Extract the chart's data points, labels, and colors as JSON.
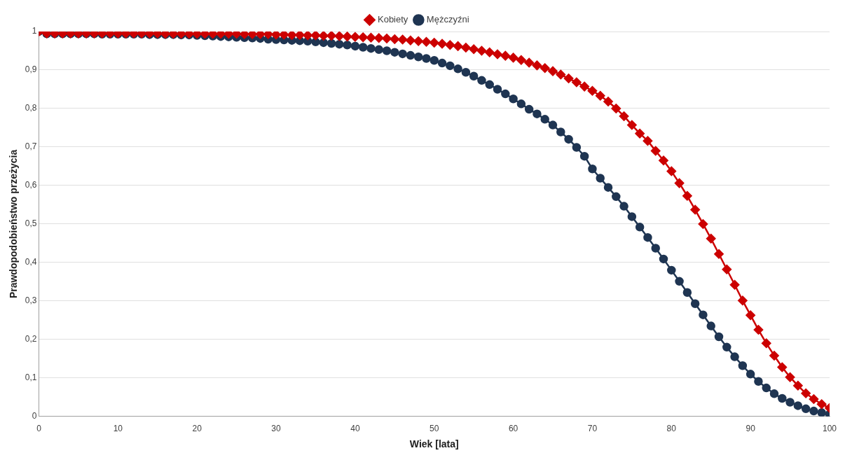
{
  "chart_data": {
    "type": "line",
    "xlabel": "Wiek [lata]",
    "ylabel": "Prawdopodobieństwo przeżycia",
    "x": [
      0,
      1,
      2,
      3,
      4,
      5,
      6,
      7,
      8,
      9,
      10,
      11,
      12,
      13,
      14,
      15,
      16,
      17,
      18,
      19,
      20,
      21,
      22,
      23,
      24,
      25,
      26,
      27,
      28,
      29,
      30,
      31,
      32,
      33,
      34,
      35,
      36,
      37,
      38,
      39,
      40,
      41,
      42,
      43,
      44,
      45,
      46,
      47,
      48,
      49,
      50,
      51,
      52,
      53,
      54,
      55,
      56,
      57,
      58,
      59,
      60,
      61,
      62,
      63,
      64,
      65,
      66,
      67,
      68,
      69,
      70,
      71,
      72,
      73,
      74,
      75,
      76,
      77,
      78,
      79,
      80,
      81,
      82,
      83,
      84,
      85,
      86,
      87,
      88,
      89,
      90,
      91,
      92,
      93,
      94,
      95,
      96,
      97,
      98,
      99,
      100
    ],
    "series": [
      {
        "name": "Kobiety",
        "color": "#cc0000",
        "marker": "diamond",
        "values": [
          1,
          0.995,
          0.995,
          0.995,
          0.995,
          0.995,
          0.995,
          0.995,
          0.995,
          0.995,
          0.995,
          0.995,
          0.995,
          0.995,
          0.995,
          0.995,
          0.994,
          0.994,
          0.994,
          0.994,
          0.994,
          0.994,
          0.994,
          0.994,
          0.994,
          0.994,
          0.993,
          0.993,
          0.993,
          0.993,
          0.992,
          0.992,
          0.991,
          0.991,
          0.99,
          0.99,
          0.989,
          0.989,
          0.988,
          0.987,
          0.986,
          0.985,
          0.984,
          0.983,
          0.982,
          0.98,
          0.979,
          0.977,
          0.975,
          0.973,
          0.971,
          0.968,
          0.965,
          0.962,
          0.958,
          0.954,
          0.95,
          0.946,
          0.941,
          0.937,
          0.932,
          0.926,
          0.919,
          0.912,
          0.905,
          0.897,
          0.888,
          0.878,
          0.868,
          0.857,
          0.846,
          0.833,
          0.818,
          0.8,
          0.78,
          0.757,
          0.735,
          0.716,
          0.69,
          0.665,
          0.637,
          0.606,
          0.573,
          0.537,
          0.5,
          0.462,
          0.422,
          0.382,
          0.342,
          0.301,
          0.263,
          0.225,
          0.19,
          0.158,
          0.128,
          0.102,
          0.08,
          0.06,
          0.045,
          0.032,
          0.022
        ]
      },
      {
        "name": "Mężczyźni",
        "color": "#1f3552",
        "marker": "circle",
        "values": [
          1,
          0.994,
          0.994,
          0.994,
          0.994,
          0.994,
          0.994,
          0.994,
          0.993,
          0.993,
          0.993,
          0.993,
          0.993,
          0.993,
          0.992,
          0.992,
          0.992,
          0.992,
          0.991,
          0.991,
          0.99,
          0.989,
          0.988,
          0.987,
          0.986,
          0.985,
          0.984,
          0.983,
          0.982,
          0.98,
          0.979,
          0.978,
          0.977,
          0.976,
          0.975,
          0.973,
          0.971,
          0.969,
          0.967,
          0.965,
          0.962,
          0.959,
          0.956,
          0.953,
          0.95,
          0.946,
          0.942,
          0.938,
          0.934,
          0.93,
          0.925,
          0.918,
          0.911,
          0.903,
          0.894,
          0.884,
          0.873,
          0.862,
          0.85,
          0.838,
          0.825,
          0.812,
          0.798,
          0.786,
          0.772,
          0.757,
          0.739,
          0.72,
          0.699,
          0.676,
          0.643,
          0.619,
          0.595,
          0.571,
          0.546,
          0.519,
          0.492,
          0.465,
          0.437,
          0.409,
          0.38,
          0.351,
          0.322,
          0.293,
          0.264,
          0.235,
          0.207,
          0.18,
          0.155,
          0.132,
          0.11,
          0.091,
          0.074,
          0.059,
          0.047,
          0.037,
          0.028,
          0.02,
          0.014,
          0.01,
          0.006
        ]
      }
    ],
    "xlim": [
      0,
      100
    ],
    "xticks": [
      0,
      10,
      20,
      30,
      40,
      50,
      60,
      70,
      80,
      90,
      100
    ],
    "ylim": [
      0,
      1
    ],
    "yticks": [
      0,
      {
        "value": 0.1,
        "label": "0,1"
      },
      {
        "value": 0.2,
        "label": "0,2"
      },
      {
        "value": 0.3,
        "label": "0,3"
      },
      {
        "value": 0.4,
        "label": "0,4"
      },
      {
        "value": 0.5,
        "label": "0,5"
      },
      {
        "value": 0.6,
        "label": "0,6"
      },
      {
        "value": 0.7,
        "label": "0,7"
      },
      {
        "value": 0.8,
        "label": "0,8"
      },
      {
        "value": 0.9,
        "label": "0,9"
      },
      1
    ],
    "grid": "y",
    "legend": "top",
    "line_style": "solid"
  }
}
